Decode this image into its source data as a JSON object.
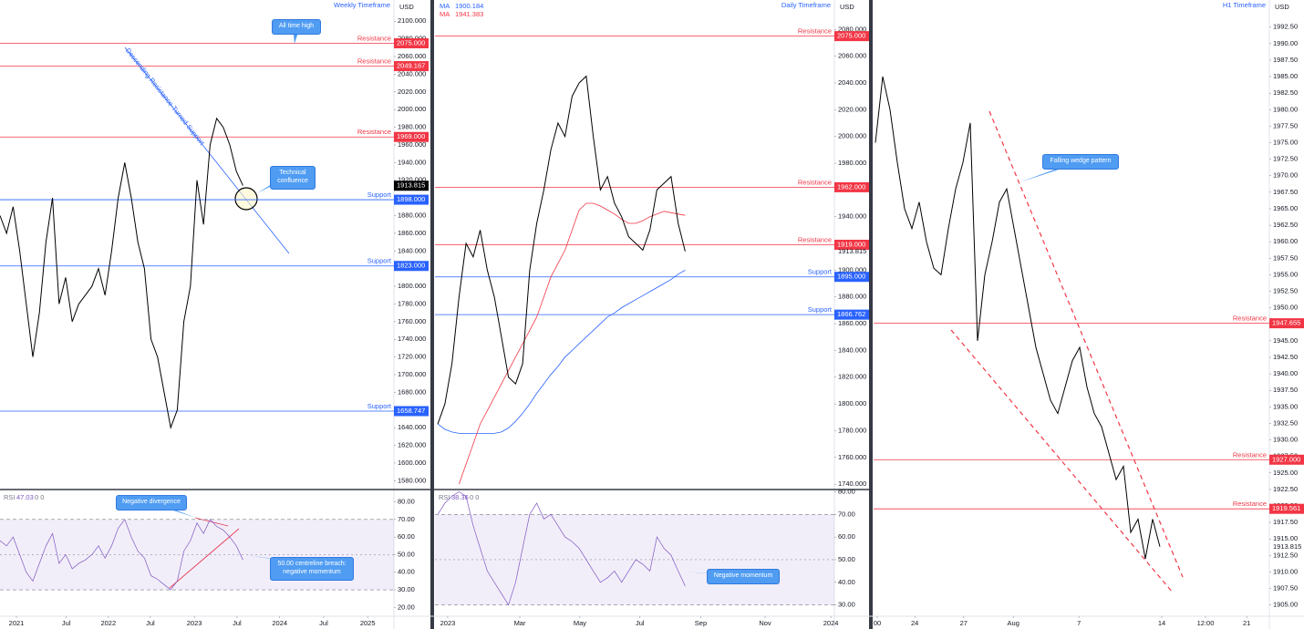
{
  "chart_data": [
    {
      "type": "line",
      "timeframe": "Weekly Timeframe",
      "currency": "USD",
      "color": "#000000",
      "last": 1913.815,
      "last_style": "tag",
      "xlim": [
        0,
        60
      ],
      "ylim": [
        1570,
        2124
      ],
      "yticks": [
        {
          "value": 1580,
          "label": "1580.000"
        },
        {
          "value": 1600,
          "label": "1600.000"
        },
        {
          "value": 1620,
          "label": "1620.000"
        },
        {
          "value": 1640,
          "label": "1640.000"
        },
        {
          "value": 1660,
          "label": "1660.000"
        },
        {
          "value": 1680,
          "label": "1680.000"
        },
        {
          "value": 1700,
          "label": "1700.000"
        },
        {
          "value": 1720,
          "label": "1720.000"
        },
        {
          "value": 1740,
          "label": "1740.000"
        },
        {
          "value": 1760,
          "label": "1760.000"
        },
        {
          "value": 1780,
          "label": "1780.000"
        },
        {
          "value": 1800,
          "label": "1800.000"
        },
        {
          "value": 1820,
          "label": "1820.000"
        },
        {
          "value": 1840,
          "label": "1840.000"
        },
        {
          "value": 1860,
          "label": "1860.000"
        },
        {
          "value": 1880,
          "label": "1880.000"
        },
        {
          "value": 1900,
          "label": "1900.000"
        },
        {
          "value": 1920,
          "label": "1920.000"
        },
        {
          "value": 1940,
          "label": "1940.000"
        },
        {
          "value": 1960,
          "label": "1960.000"
        },
        {
          "value": 1980,
          "label": "1980.000"
        },
        {
          "value": 2000,
          "label": "2000.000"
        },
        {
          "value": 2020,
          "label": "2020.000"
        },
        {
          "value": 2040,
          "label": "2040.000"
        },
        {
          "value": 2060,
          "label": "2060.000"
        },
        {
          "value": 2080,
          "label": "2080.000"
        },
        {
          "value": 2100,
          "label": "2100.000"
        }
      ],
      "values": [
        1880,
        1860,
        1890,
        1840,
        1780,
        1720,
        1770,
        1850,
        1900,
        1780,
        1810,
        1760,
        1780,
        1790,
        1800,
        1820,
        1790,
        1840,
        1900,
        1940,
        1900,
        1850,
        1820,
        1740,
        1720,
        1680,
        1640,
        1660,
        1760,
        1800,
        1920,
        1870,
        1960,
        1990,
        1980,
        1960,
        1930,
        1914
      ],
      "levels": [
        {
          "label": "Resistance",
          "value": 2075,
          "value_label": "2075.000",
          "color": "#f23645"
        },
        {
          "label": "Resistance",
          "value": 2049.167,
          "value_label": "2049.167",
          "color": "#f23645"
        },
        {
          "label": "Resistance",
          "value": 1969,
          "value_label": "1969.000",
          "color": "#f23645"
        },
        {
          "label": "Support",
          "value": 1898,
          "value_label": "1898.000",
          "color": "#2962ff"
        },
        {
          "label": "Support",
          "value": 1823,
          "value_label": "1823.000",
          "color": "#2962ff"
        },
        {
          "label": "Support",
          "value": 1658.747,
          "value_label": "1658.747",
          "color": "#2962ff"
        }
      ],
      "annotations": [
        {
          "text": "All time high"
        },
        {
          "text": "Technical confluence"
        },
        {
          "text": "Descending Resistance-Turned-Support"
        }
      ]
    },
    {
      "type": "line",
      "indicator": "RSI",
      "indicator_value": 47.03,
      "indicator_extra": "0   0",
      "color": "#7e57c2",
      "band": [
        30,
        70
      ],
      "midline": 50,
      "xlim": [
        0,
        60
      ],
      "ylim": [
        15,
        87
      ],
      "xticks": [
        {
          "value": 2.5,
          "label": "2021"
        },
        {
          "value": 10.1,
          "label": "Jul"
        },
        {
          "value": 16.5,
          "label": "2022"
        },
        {
          "value": 22.9,
          "label": "Jul"
        },
        {
          "value": 29.6,
          "label": "2023"
        },
        {
          "value": 36.1,
          "label": "Jul"
        },
        {
          "value": 42.6,
          "label": "2024"
        },
        {
          "value": 49.3,
          "label": "Jul"
        },
        {
          "value": 56,
          "label": "2025"
        }
      ],
      "yticks": [
        {
          "value": 20,
          "label": "20.00"
        },
        {
          "value": 30,
          "label": "30.00"
        },
        {
          "value": 40,
          "label": "40.00"
        },
        {
          "value": 50,
          "label": "50.00"
        },
        {
          "value": 60,
          "label": "60.00"
        },
        {
          "value": 70,
          "label": "70.00"
        },
        {
          "value": 80,
          "label": "80.00"
        }
      ],
      "values": [
        58,
        55,
        60,
        50,
        40,
        35,
        45,
        55,
        62,
        45,
        50,
        42,
        45,
        47,
        50,
        55,
        48,
        55,
        65,
        70,
        60,
        52,
        48,
        38,
        36,
        33,
        30,
        35,
        52,
        58,
        68,
        62,
        70,
        66,
        64,
        60,
        55,
        47
      ],
      "annotations": [
        {
          "text": "Negative divergence"
        },
        {
          "text": "50.00 centreline breach: negative momentum"
        }
      ]
    },
    {
      "type": "line",
      "timeframe": "Daily Timeframe",
      "currency": "USD",
      "color": "#000000",
      "last": 1913.815,
      "last_style": "plain",
      "xlim": [
        -0.4,
        56.1
      ],
      "ylim": [
        1736,
        2102
      ],
      "yticks": [
        {
          "value": 1740,
          "label": "1740.000"
        },
        {
          "value": 1760,
          "label": "1760.000"
        },
        {
          "value": 1780,
          "label": "1780.000"
        },
        {
          "value": 1800,
          "label": "1800.000"
        },
        {
          "value": 1820,
          "label": "1820.000"
        },
        {
          "value": 1840,
          "label": "1840.000"
        },
        {
          "value": 1860,
          "label": "1860.000"
        },
        {
          "value": 1880,
          "label": "1880.000"
        },
        {
          "value": 1900,
          "label": "1900.000"
        },
        {
          "value": 1920,
          "label": "1920.000"
        },
        {
          "value": 1940,
          "label": "1940.000"
        },
        {
          "value": 1960,
          "label": "1960.000"
        },
        {
          "value": 1980,
          "label": "1980.000"
        },
        {
          "value": 2000,
          "label": "2000.000"
        },
        {
          "value": 2020,
          "label": "2020.000"
        },
        {
          "value": 2040,
          "label": "2040.000"
        },
        {
          "value": 2060,
          "label": "2060.000"
        },
        {
          "value": 2080,
          "label": "2080.000"
        }
      ],
      "values": [
        1785,
        1800,
        1830,
        1880,
        1920,
        1910,
        1930,
        1900,
        1880,
        1850,
        1820,
        1815,
        1830,
        1900,
        1935,
        1960,
        1990,
        2010,
        2000,
        2030,
        2040,
        2045,
        2000,
        1960,
        1970,
        1950,
        1940,
        1925,
        1920,
        1915,
        1930,
        1960,
        1965,
        1970,
        1935,
        1914
      ],
      "series": [
        {
          "name": "MA",
          "color": "#2962ff",
          "legend_value": 1900.184,
          "values": [
            1785,
            1781,
            1779,
            1778,
            1778,
            1778,
            1778,
            1778,
            1778,
            1779,
            1782,
            1787,
            1793,
            1800,
            1808,
            1815,
            1822,
            1828,
            1835,
            1840,
            1845,
            1850,
            1855,
            1860,
            1865,
            1868,
            1872,
            1875,
            1878,
            1881,
            1884,
            1887,
            1890,
            1893,
            1897,
            1900
          ]
        },
        {
          "name": "MA",
          "color": "#f23645",
          "legend_value": 1941.383,
          "values": [
            null,
            null,
            null,
            1740,
            1755,
            1770,
            1785,
            1795,
            1805,
            1815,
            1825,
            1835,
            1845,
            1855,
            1865,
            1880,
            1895,
            1905,
            1915,
            1930,
            1945,
            1950,
            1950,
            1948,
            1945,
            1942,
            1938,
            1935,
            1935,
            1937,
            1940,
            1942,
            1944,
            1943,
            1942,
            1941
          ]
        }
      ],
      "levels": [
        {
          "label": "Resistance",
          "value": 2075,
          "value_label": "2075.000",
          "color": "#f23645"
        },
        {
          "label": "Resistance",
          "value": 1962,
          "value_label": "1962.000",
          "color": "#f23645"
        },
        {
          "label": "Resistance",
          "value": 1919,
          "value_label": "1919.000",
          "color": "#f23645"
        },
        {
          "label": "Support",
          "value": 1895,
          "value_label": "1895.000",
          "color": "#2962ff"
        },
        {
          "label": "Support",
          "value": 1866.762,
          "value_label": "1866.762",
          "color": "#2962ff"
        }
      ]
    },
    {
      "type": "line",
      "indicator": "RSI",
      "indicator_value": 38.36,
      "indicator_extra": "0   0",
      "color": "#7e57c2",
      "band": [
        30,
        70
      ],
      "midline": 50,
      "xlim": [
        -0.4,
        56.1
      ],
      "ylim": [
        25,
        81
      ],
      "xticks": [
        {
          "value": 1.4,
          "label": "2023"
        },
        {
          "value": 11.6,
          "label": "Mar"
        },
        {
          "value": 20.1,
          "label": "May"
        },
        {
          "value": 28.6,
          "label": "Jul"
        },
        {
          "value": 37.2,
          "label": "Sep"
        },
        {
          "value": 46.3,
          "label": "Nov"
        },
        {
          "value": 55.6,
          "label": "2024"
        }
      ],
      "yticks": [
        {
          "value": 30,
          "label": "30.00"
        },
        {
          "value": 40,
          "label": "40.00"
        },
        {
          "value": 50,
          "label": "50.00"
        },
        {
          "value": 60,
          "label": "60.00"
        },
        {
          "value": 70,
          "label": "70.00"
        },
        {
          "value": 80,
          "label": "80.00"
        }
      ],
      "values": [
        70,
        75,
        78,
        80,
        78,
        65,
        55,
        45,
        40,
        35,
        30,
        40,
        55,
        70,
        75,
        68,
        70,
        65,
        60,
        58,
        55,
        50,
        45,
        40,
        42,
        45,
        40,
        45,
        50,
        48,
        45,
        60,
        55,
        52,
        45,
        38.36
      ],
      "annotations": [
        {
          "text": "Negative momentum"
        }
      ]
    },
    {
      "type": "line",
      "timeframe": "H1 Timeframe",
      "currency": "USD",
      "color": "#000000",
      "last": 1913.815,
      "last_style": "plain",
      "xlim": [
        -0.25,
        54
      ],
      "ylim": [
        1903.3,
        1996.6
      ],
      "xticks": [
        {
          "value": 0.25,
          "label": "00"
        },
        {
          "value": 5.4,
          "label": "24"
        },
        {
          "value": 12.1,
          "label": "27"
        },
        {
          "value": 18.9,
          "label": "Aug"
        },
        {
          "value": 27.9,
          "label": "7"
        },
        {
          "value": 39.25,
          "label": "14"
        },
        {
          "value": 45.25,
          "label": "12:00"
        },
        {
          "value": 50.9,
          "label": "21"
        }
      ],
      "yticks": [
        {
          "value": 1905,
          "label": "1905.00"
        },
        {
          "value": 1907.5,
          "label": "1907.50"
        },
        {
          "value": 1910,
          "label": "1910.00"
        },
        {
          "value": 1912.5,
          "label": "1912.50"
        },
        {
          "value": 1915,
          "label": "1915.00"
        },
        {
          "value": 1917.5,
          "label": "1917.50"
        },
        {
          "value": 1920,
          "label": "1920.00"
        },
        {
          "value": 1922.5,
          "label": "1922.50"
        },
        {
          "value": 1925,
          "label": "1925.00"
        },
        {
          "value": 1927.5,
          "label": "1927.50"
        },
        {
          "value": 1930,
          "label": "1930.00"
        },
        {
          "value": 1932.5,
          "label": "1932.50"
        },
        {
          "value": 1935,
          "label": "1935.00"
        },
        {
          "value": 1937.5,
          "label": "1937.50"
        },
        {
          "value": 1940,
          "label": "1940.00"
        },
        {
          "value": 1942.5,
          "label": "1942.50"
        },
        {
          "value": 1945,
          "label": "1945.00"
        },
        {
          "value": 1947.5,
          "label": "1947.50"
        },
        {
          "value": 1950,
          "label": "1950.00"
        },
        {
          "value": 1952.5,
          "label": "1952.50"
        },
        {
          "value": 1955,
          "label": "1955.00"
        },
        {
          "value": 1957.5,
          "label": "1957.50"
        },
        {
          "value": 1960,
          "label": "1960.00"
        },
        {
          "value": 1962.5,
          "label": "1962.50"
        },
        {
          "value": 1965,
          "label": "1965.00"
        },
        {
          "value": 1967.5,
          "label": "1967.50"
        },
        {
          "value": 1970,
          "label": "1970.00"
        },
        {
          "value": 1972.5,
          "label": "1972.50"
        },
        {
          "value": 1975,
          "label": "1975.00"
        },
        {
          "value": 1977.5,
          "label": "1977.50"
        },
        {
          "value": 1980,
          "label": "1980.00"
        },
        {
          "value": 1982.5,
          "label": "1982.50"
        },
        {
          "value": 1985,
          "label": "1985.00"
        },
        {
          "value": 1987.5,
          "label": "1987.50"
        },
        {
          "value": 1990,
          "label": "1990.00"
        },
        {
          "value": 1992.5,
          "label": "1992.50"
        }
      ],
      "values": [
        1975,
        1985,
        1980,
        1972,
        1965,
        1962,
        1966,
        1960,
        1956,
        1955,
        1962,
        1968,
        1972,
        1978,
        1945,
        1955,
        1960,
        1966,
        1968,
        1962,
        1956,
        1950,
        1944,
        1940,
        1936,
        1934,
        1938,
        1942,
        1944,
        1938,
        1934,
        1932,
        1928,
        1924,
        1926,
        1916,
        1918,
        1912,
        1918,
        1913.815
      ],
      "levels": [
        {
          "label": "Resistance",
          "value": 1947.655,
          "value_label": "1947.655",
          "color": "#f23645"
        },
        {
          "label": "Resistance",
          "value": 1927,
          "value_label": "1927.000",
          "color": "#f23645"
        },
        {
          "label": "Resistance",
          "value": 1919.561,
          "value_label": "1919.561",
          "color": "#f23645"
        }
      ],
      "annotations": [
        {
          "text": "Falling wedge pattern"
        }
      ]
    }
  ]
}
